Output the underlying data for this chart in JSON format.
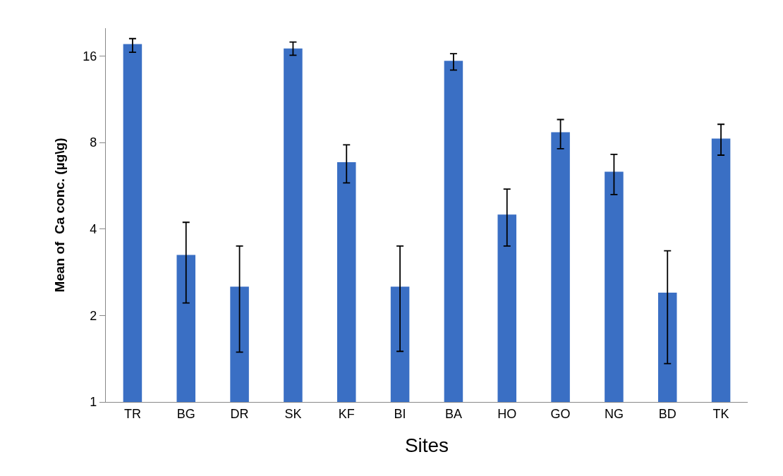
{
  "chart_data": {
    "type": "bar",
    "xlabel": "Sites",
    "ylabel": "Mean of  Ca conc. (µg\\g)",
    "categories": [
      "TR",
      "BG",
      "DR",
      "SK",
      "KF",
      "BI",
      "BA",
      "HO",
      "GO",
      "NG",
      "BD",
      "TK"
    ],
    "values": [
      17.6,
      3.25,
      2.52,
      17.0,
      6.83,
      2.52,
      15.4,
      4.49,
      8.69,
      6.33,
      2.4,
      8.26
    ],
    "errors": [
      [
        16.5,
        18.4
      ],
      [
        2.21,
        4.22
      ],
      [
        1.49,
        3.49
      ],
      [
        16.1,
        17.9
      ],
      [
        5.79,
        7.85
      ],
      [
        1.5,
        3.49
      ],
      [
        14.3,
        16.3
      ],
      [
        3.49,
        5.51
      ],
      [
        7.61,
        9.62
      ],
      [
        5.27,
        7.28
      ],
      [
        1.36,
        3.36
      ],
      [
        7.23,
        9.26
      ]
    ],
    "color": "#3a6fc4",
    "log": true,
    "ylim": [
      1,
      20
    ],
    "yticks": [
      1,
      2,
      4,
      8,
      16
    ]
  }
}
